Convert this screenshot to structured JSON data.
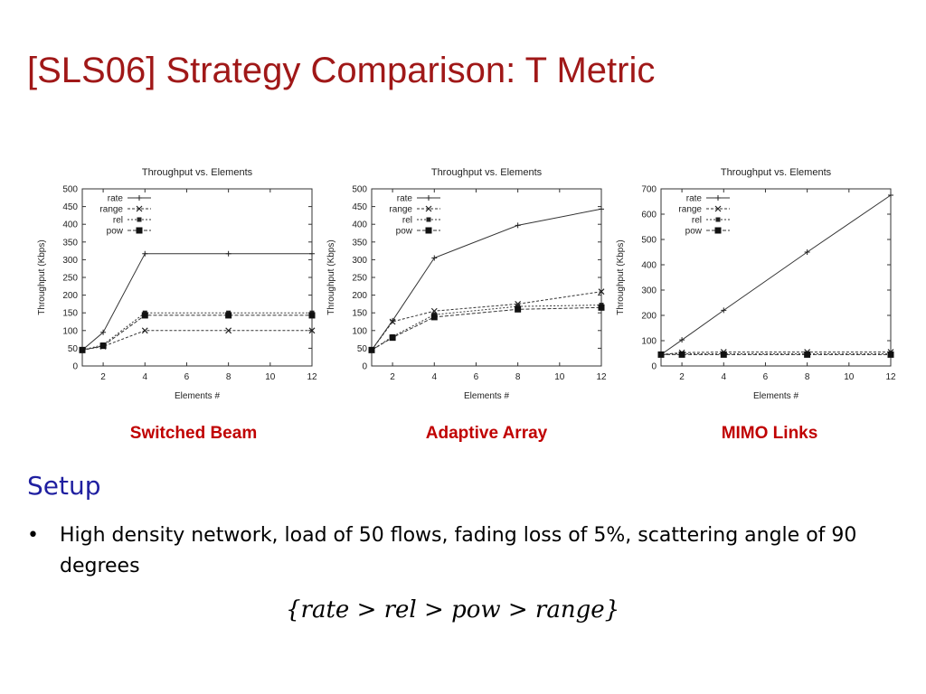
{
  "slide": {
    "title": "[SLS06] Strategy Comparison: T Metric",
    "captions": [
      "Switched Beam",
      "Adaptive Array",
      "MIMO Links"
    ],
    "setup_heading": "Setup",
    "bullet_symbol": "•",
    "bullet_text": "High density network, load of 50 flows, fading loss of 5%, scattering angle of 90 degrees",
    "formula": "{rate > rel > pow > range}",
    "colors": {
      "title": "#a01818",
      "caption": "#c00000",
      "heading": "#1f1fa0"
    }
  },
  "chart_data": [
    {
      "type": "line",
      "title": "Throughput vs. Elements",
      "xlabel": "Elements #",
      "ylabel": "Throughput (Kbps)",
      "xlim": [
        1,
        12
      ],
      "ylim": [
        0,
        500
      ],
      "xticks": [
        2,
        4,
        6,
        8,
        10,
        12
      ],
      "yticks": [
        0,
        50,
        100,
        150,
        200,
        250,
        300,
        350,
        400,
        450,
        500
      ],
      "legend_position": "top-left",
      "grid": false,
      "x": [
        1,
        2,
        4,
        8,
        12
      ],
      "series": [
        {
          "name": "rate",
          "marker": "plus",
          "dash": "",
          "values": [
            45,
            95,
            317,
            317,
            317
          ]
        },
        {
          "name": "range",
          "marker": "cross",
          "dash": "3,2",
          "values": [
            45,
            55,
            100,
            100,
            100
          ]
        },
        {
          "name": "rel",
          "marker": "square",
          "dash": "2,2",
          "values": [
            45,
            60,
            150,
            150,
            150
          ]
        },
        {
          "name": "pow",
          "marker": "bigsquare",
          "dash": "4,2",
          "values": [
            45,
            57,
            143,
            143,
            143
          ]
        }
      ]
    },
    {
      "type": "line",
      "title": "Throughput vs. Elements",
      "xlabel": "Elements #",
      "ylabel": "Throughput (Kbps)",
      "xlim": [
        1,
        12
      ],
      "ylim": [
        0,
        500
      ],
      "xticks": [
        2,
        4,
        6,
        8,
        10,
        12
      ],
      "yticks": [
        0,
        50,
        100,
        150,
        200,
        250,
        300,
        350,
        400,
        450,
        500
      ],
      "legend_position": "top-left",
      "grid": false,
      "x": [
        1,
        2,
        4,
        8,
        12
      ],
      "series": [
        {
          "name": "rate",
          "marker": "plus",
          "dash": "",
          "values": [
            45,
            128,
            305,
            397,
            443
          ]
        },
        {
          "name": "range",
          "marker": "cross",
          "dash": "3,2",
          "values": [
            45,
            125,
            155,
            175,
            210
          ]
        },
        {
          "name": "rel",
          "marker": "square",
          "dash": "2,2",
          "values": [
            45,
            83,
            145,
            168,
            172
          ]
        },
        {
          "name": "pow",
          "marker": "bigsquare",
          "dash": "4,2",
          "values": [
            45,
            80,
            138,
            160,
            165
          ]
        }
      ]
    },
    {
      "type": "line",
      "title": "Throughput vs. Elements",
      "xlabel": "Elements #",
      "ylabel": "Throughput (Kbps)",
      "xlim": [
        1,
        12
      ],
      "ylim": [
        0,
        700
      ],
      "xticks": [
        2,
        4,
        6,
        8,
        10,
        12
      ],
      "yticks": [
        0,
        100,
        200,
        300,
        400,
        500,
        600,
        700
      ],
      "legend_position": "top-left",
      "grid": false,
      "x": [
        1,
        2,
        4,
        8,
        12
      ],
      "series": [
        {
          "name": "rate",
          "marker": "plus",
          "dash": "",
          "values": [
            45,
            103,
            220,
            450,
            675
          ]
        },
        {
          "name": "range",
          "marker": "cross",
          "dash": "3,2",
          "values": [
            45,
            53,
            55,
            55,
            55
          ]
        },
        {
          "name": "rel",
          "marker": "square",
          "dash": "2,2",
          "values": [
            45,
            48,
            48,
            48,
            48
          ]
        },
        {
          "name": "pow",
          "marker": "bigsquare",
          "dash": "4,2",
          "values": [
            45,
            45,
            45,
            45,
            45
          ]
        }
      ]
    }
  ]
}
